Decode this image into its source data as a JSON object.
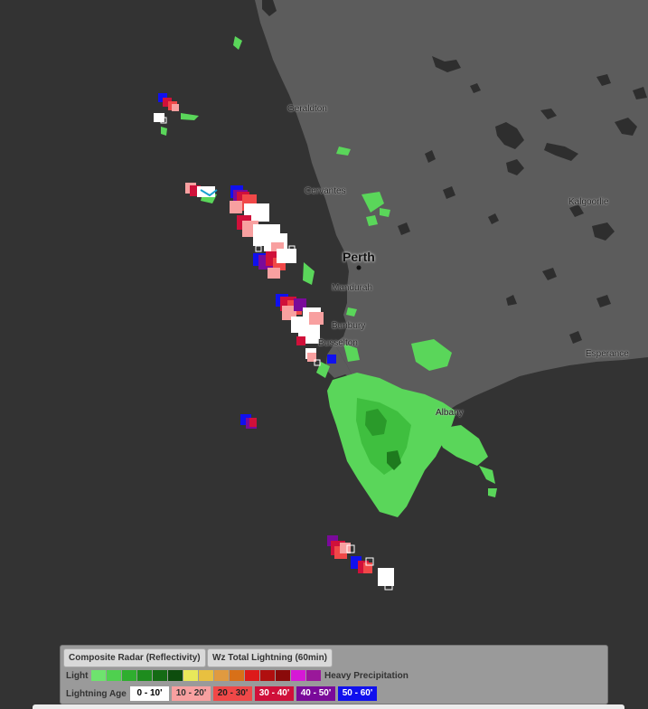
{
  "map": {
    "cities": [
      {
        "name": "Geraldton",
        "key": "geraldton"
      },
      {
        "name": "Cervantes",
        "key": "cervantes"
      },
      {
        "name": "Perth",
        "key": "perth"
      },
      {
        "name": "Mandurah",
        "key": "mandurah"
      },
      {
        "name": "Bunbury",
        "key": "bunbury"
      },
      {
        "name": "Busselton",
        "key": "busselton"
      },
      {
        "name": "Kalgoorlie",
        "key": "kalgoorlie"
      },
      {
        "name": "Esperance",
        "key": "esperance"
      },
      {
        "name": "Albany",
        "key": "albany"
      }
    ],
    "colors": {
      "ocean": "#333333",
      "land": "#5c5c5c",
      "lakes": "#2e2e2e"
    }
  },
  "legend": {
    "layer_buttons": [
      "Composite Radar (Reflectivity)",
      "Wz Total Lightning (60min)"
    ],
    "radar": {
      "light_label": "Light",
      "heavy_label": "Heavy Precipitation",
      "colors": [
        "#6ee36e",
        "#4fd04f",
        "#2fae2f",
        "#1e8c1e",
        "#156b15",
        "#0d4d0d",
        "#e8e85a",
        "#e8c040",
        "#e09a40",
        "#d87018",
        "#dd1a1a",
        "#b00f0f",
        "#8a0a0a",
        "#d618d6",
        "#9a189a"
      ]
    },
    "lightning": {
      "label": "Lightning Age",
      "ages": [
        {
          "label": "0 - 10'",
          "bg": "#ffffff",
          "fg": "#000000"
        },
        {
          "label": "10 - 20'",
          "bg": "#f8a0a0",
          "fg": "#333333"
        },
        {
          "label": "20 - 30'",
          "bg": "#f04848",
          "fg": "#222222"
        },
        {
          "label": "30 - 40'",
          "bg": "#d0103a",
          "fg": "#ffffff"
        },
        {
          "label": "40 - 50'",
          "bg": "#7a0a9a",
          "fg": "#ffffff"
        },
        {
          "label": "50 - 60'",
          "bg": "#1010ee",
          "fg": "#ffffff"
        }
      ]
    }
  }
}
